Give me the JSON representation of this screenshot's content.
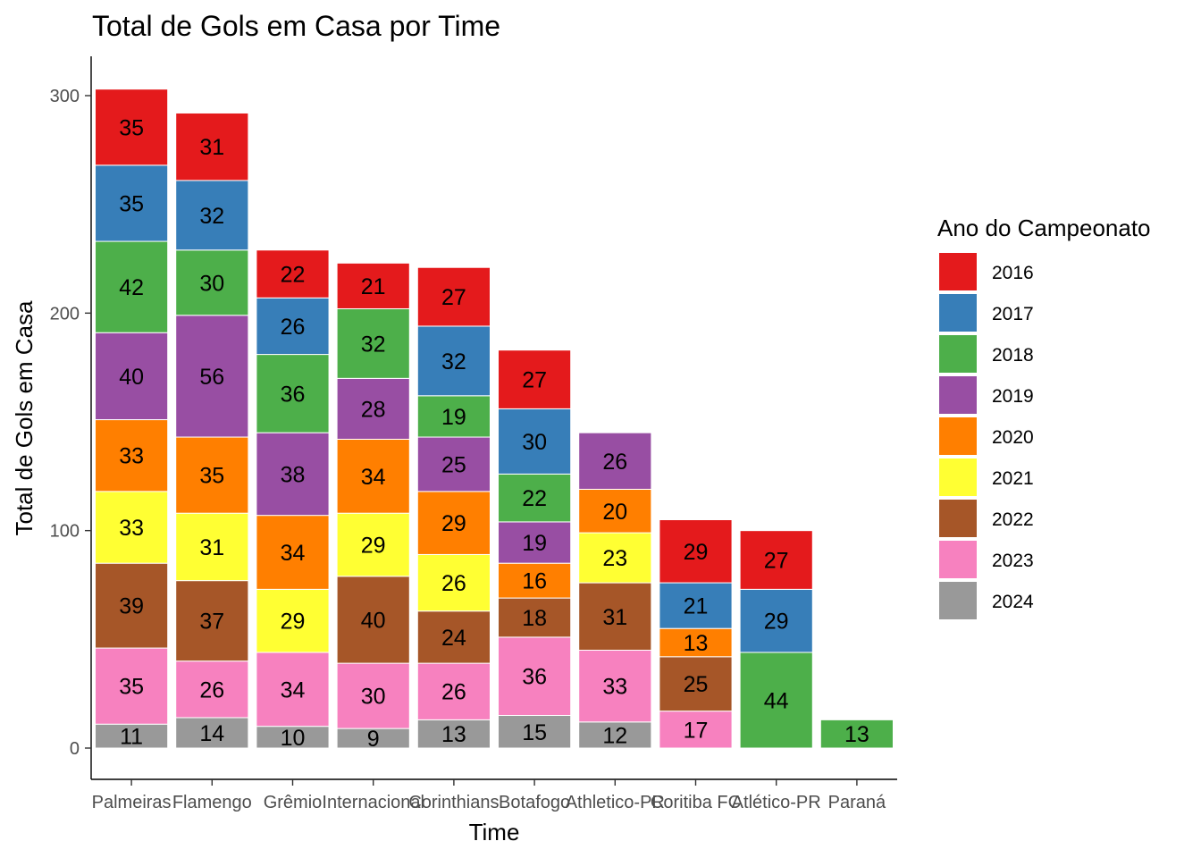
{
  "chart_data": {
    "type": "bar",
    "stacked": true,
    "title": "Total de Gols em Casa por Time",
    "xlabel": "Time",
    "ylabel": "Total de Gols em Casa",
    "ylim": [
      0,
      320
    ],
    "yticks": [
      0,
      100,
      200,
      300
    ],
    "grid": false,
    "legend": {
      "title": "Ano do Campeonato",
      "position": "right"
    },
    "categories": [
      "Palmeiras",
      "Flamengo",
      "Grêmio",
      "Internacional",
      "Corinthians",
      "Botafogo",
      "Athletico-PR",
      "Coritiba FC",
      "Atlético-PR",
      "Paraná"
    ],
    "series": [
      {
        "name": "2016",
        "color": "#E41A1C",
        "values": [
          35,
          31,
          22,
          21,
          27,
          27,
          0,
          29,
          27,
          0
        ]
      },
      {
        "name": "2017",
        "color": "#377EB8",
        "values": [
          35,
          32,
          26,
          0,
          32,
          30,
          0,
          21,
          29,
          0
        ]
      },
      {
        "name": "2018",
        "color": "#4DAF4A",
        "values": [
          42,
          30,
          36,
          32,
          19,
          22,
          0,
          0,
          44,
          13
        ]
      },
      {
        "name": "2019",
        "color": "#984EA3",
        "values": [
          40,
          56,
          38,
          28,
          25,
          19,
          26,
          0,
          0,
          0
        ]
      },
      {
        "name": "2020",
        "color": "#FF7F00",
        "values": [
          33,
          35,
          34,
          34,
          29,
          16,
          20,
          13,
          0,
          0
        ]
      },
      {
        "name": "2021",
        "color": "#FFFF33",
        "values": [
          33,
          31,
          29,
          29,
          26,
          0,
          23,
          0,
          0,
          0
        ]
      },
      {
        "name": "2022",
        "color": "#A65628",
        "values": [
          39,
          37,
          0,
          40,
          24,
          18,
          31,
          25,
          0,
          0
        ]
      },
      {
        "name": "2023",
        "color": "#F781BF",
        "values": [
          35,
          26,
          34,
          30,
          26,
          36,
          33,
          17,
          0,
          0
        ]
      },
      {
        "name": "2024",
        "color": "#999999",
        "values": [
          11,
          14,
          10,
          9,
          13,
          15,
          12,
          0,
          0,
          0
        ]
      }
    ]
  }
}
